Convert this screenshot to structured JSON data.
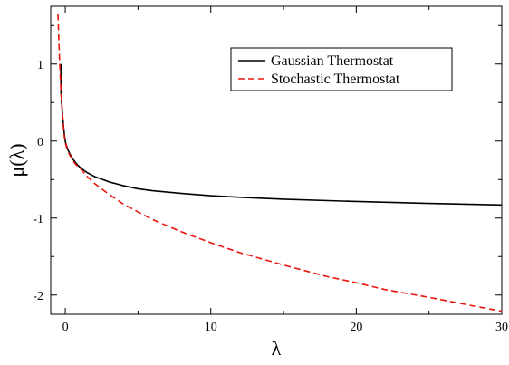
{
  "chart_data": {
    "type": "line",
    "title": "",
    "xlabel": "λ",
    "ylabel": "μ(λ)",
    "xlim": [
      -1,
      30
    ],
    "ylim": [
      -2.25,
      1.75
    ],
    "xticks": [
      0,
      10,
      20,
      30
    ],
    "xtick_labels": [
      "0",
      "10",
      "20",
      "30"
    ],
    "yticks": [
      -2,
      -1,
      0,
      1
    ],
    "ytick_labels": [
      "-2",
      "-1",
      "0",
      "1"
    ],
    "grid": false,
    "legend_position": "top-right",
    "series": [
      {
        "name": "Gaussian Thermostat",
        "color": "#000000",
        "dash": "solid",
        "x": [
          -0.3,
          -0.3,
          -0.25,
          -0.2,
          -0.15,
          -0.1,
          -0.05,
          0,
          0.05,
          0.1,
          0.2,
          0.3,
          0.5,
          0.75,
          1,
          1.5,
          2,
          3,
          4,
          5,
          6,
          8,
          10,
          12,
          15,
          20,
          25,
          30
        ],
        "values": [
          1.0,
          0.65,
          0.5,
          0.37,
          0.26,
          0.16,
          0.07,
          0.0,
          -0.04,
          -0.07,
          -0.12,
          -0.16,
          -0.23,
          -0.29,
          -0.34,
          -0.41,
          -0.46,
          -0.53,
          -0.58,
          -0.62,
          -0.645,
          -0.68,
          -0.71,
          -0.73,
          -0.755,
          -0.785,
          -0.81,
          -0.83
        ]
      },
      {
        "name": "Stochastic Thermostat",
        "color": "#e8160c",
        "dash": "dashed",
        "x": [
          -0.5,
          -0.45,
          -0.4,
          -0.35,
          -0.3,
          -0.25,
          -0.2,
          -0.15,
          -0.1,
          -0.05,
          0,
          0.1,
          0.2,
          0.3,
          0.5,
          0.75,
          1,
          1.5,
          2,
          3,
          4,
          5,
          6,
          8,
          10,
          12,
          15,
          18,
          20,
          22,
          25,
          28,
          30
        ],
        "values": [
          1.65,
          1.35,
          1.1,
          0.88,
          0.68,
          0.5,
          0.36,
          0.23,
          0.12,
          0.04,
          -0.02,
          -0.09,
          -0.14,
          -0.18,
          -0.25,
          -0.31,
          -0.35,
          -0.46,
          -0.55,
          -0.69,
          -0.82,
          -0.92,
          -1.02,
          -1.18,
          -1.32,
          -1.45,
          -1.61,
          -1.76,
          -1.84,
          -1.93,
          -2.03,
          -2.14,
          -2.21
        ]
      }
    ]
  }
}
